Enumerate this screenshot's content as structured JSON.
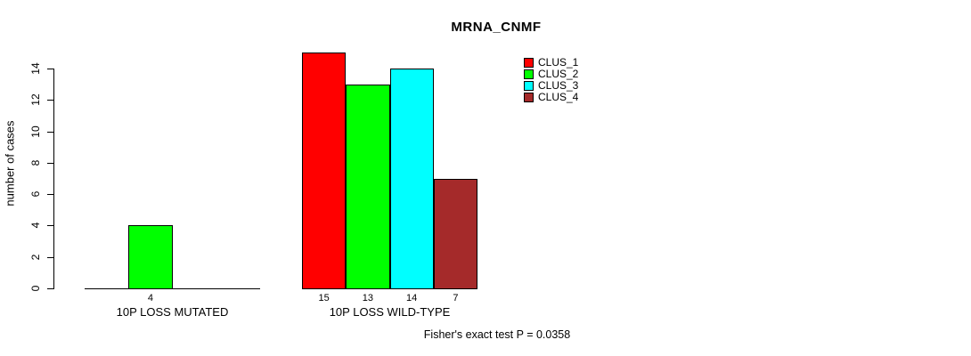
{
  "chart_data": {
    "type": "bar",
    "title": "MRNA_CNMF",
    "ylabel": "number of cases",
    "xlabel": "",
    "ylim": [
      0,
      15
    ],
    "yticks": [
      0,
      2,
      4,
      6,
      8,
      10,
      12,
      14
    ],
    "grid": false,
    "legend_position": "top-right",
    "background": "#ffffff",
    "axis_color": "#000000",
    "series": [
      {
        "name": "CLUS_1",
        "color": "#FF0000"
      },
      {
        "name": "CLUS_2",
        "color": "#00FF00"
      },
      {
        "name": "CLUS_3",
        "color": "#00FFFF"
      },
      {
        "name": "CLUS_4",
        "color": "#A52A2A"
      }
    ],
    "categories": [
      "10P LOSS MUTATED",
      "10P LOSS WILD-TYPE"
    ],
    "groups": [
      {
        "label": "10P LOSS MUTATED",
        "values": [
          0,
          4,
          0,
          0
        ],
        "bar_labels": [
          null,
          "4",
          null,
          null
        ]
      },
      {
        "label": "10P LOSS WILD-TYPE",
        "values": [
          15,
          13,
          14,
          7
        ],
        "bar_labels": [
          "15",
          "13",
          "14",
          "7"
        ]
      }
    ],
    "annotation": "Fisher's exact test P = 0.0358"
  }
}
